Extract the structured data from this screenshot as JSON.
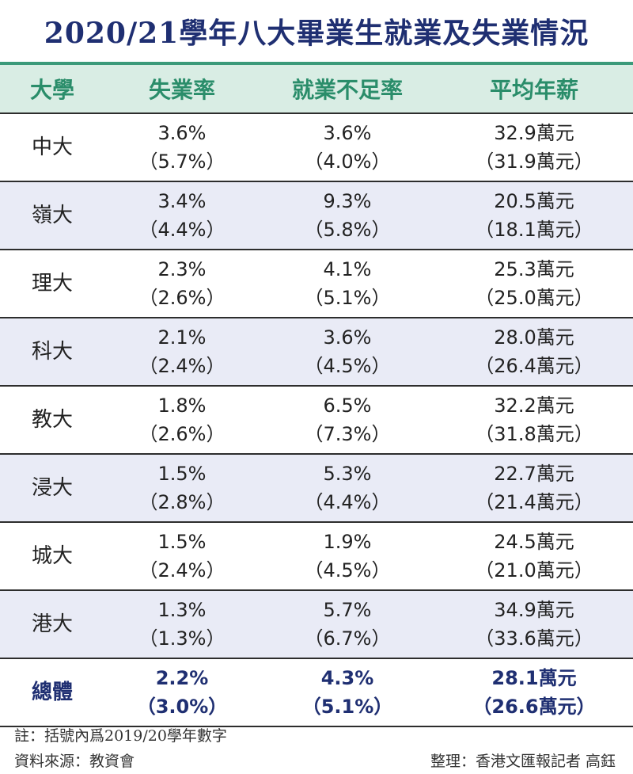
{
  "title": "2020/21學年八大畢業生就業及失業情況",
  "columns": [
    "大學",
    "失業率",
    "就業不足率",
    "平均年薪"
  ],
  "rows": [
    {
      "name": "中大",
      "unemp": "3.6%",
      "unemp_prev": "（5.7%）",
      "under": "3.6%",
      "under_prev": "（4.0%）",
      "salary": "32.9萬元",
      "salary_prev": "（31.9萬元）"
    },
    {
      "name": "嶺大",
      "unemp": "3.4%",
      "unemp_prev": "（4.4%）",
      "under": "9.3%",
      "under_prev": "（5.8%）",
      "salary": "20.5萬元",
      "salary_prev": "（18.1萬元）"
    },
    {
      "name": "理大",
      "unemp": "2.3%",
      "unemp_prev": "（2.6%）",
      "under": "4.1%",
      "under_prev": "（5.1%）",
      "salary": "25.3萬元",
      "salary_prev": "（25.0萬元）"
    },
    {
      "name": "科大",
      "unemp": "2.1%",
      "unemp_prev": "（2.4%）",
      "under": "3.6%",
      "under_prev": "（4.5%）",
      "salary": "28.0萬元",
      "salary_prev": "（26.4萬元）"
    },
    {
      "name": "教大",
      "unemp": "1.8%",
      "unemp_prev": "（2.6%）",
      "under": "6.5%",
      "under_prev": "（7.3%）",
      "salary": "32.2萬元",
      "salary_prev": "（31.8萬元）"
    },
    {
      "name": "浸大",
      "unemp": "1.5%",
      "unemp_prev": "（2.8%）",
      "under": "5.3%",
      "under_prev": "（4.4%）",
      "salary": "22.7萬元",
      "salary_prev": "（21.4萬元）"
    },
    {
      "name": "城大",
      "unemp": "1.5%",
      "unemp_prev": "（2.4%）",
      "under": "1.9%",
      "under_prev": "（4.5%）",
      "salary": "24.5萬元",
      "salary_prev": "（21.0萬元）"
    },
    {
      "name": "港大",
      "unemp": "1.3%",
      "unemp_prev": "（1.3%）",
      "under": "5.7%",
      "under_prev": "（6.7%）",
      "salary": "34.9萬元",
      "salary_prev": "（33.6萬元）"
    },
    {
      "name": "總體",
      "unemp": "2.2%",
      "unemp_prev": "（3.0%）",
      "under": "4.3%",
      "under_prev": "（5.1%）",
      "salary": "28.1萬元",
      "salary_prev": "（26.6萬元）"
    }
  ],
  "notes": {
    "bracket_note": "註：括號內爲2019/20學年數字",
    "source": "資料來源：教資會",
    "credit": "整理：香港文匯報記者 高鈺"
  },
  "colors": {
    "title": "#1f2f72",
    "header_text": "#2a8d6a",
    "header_bg": "#d9ede4",
    "alt_row_bg": "#e9ebf6",
    "total_text": "#1f2f72"
  }
}
